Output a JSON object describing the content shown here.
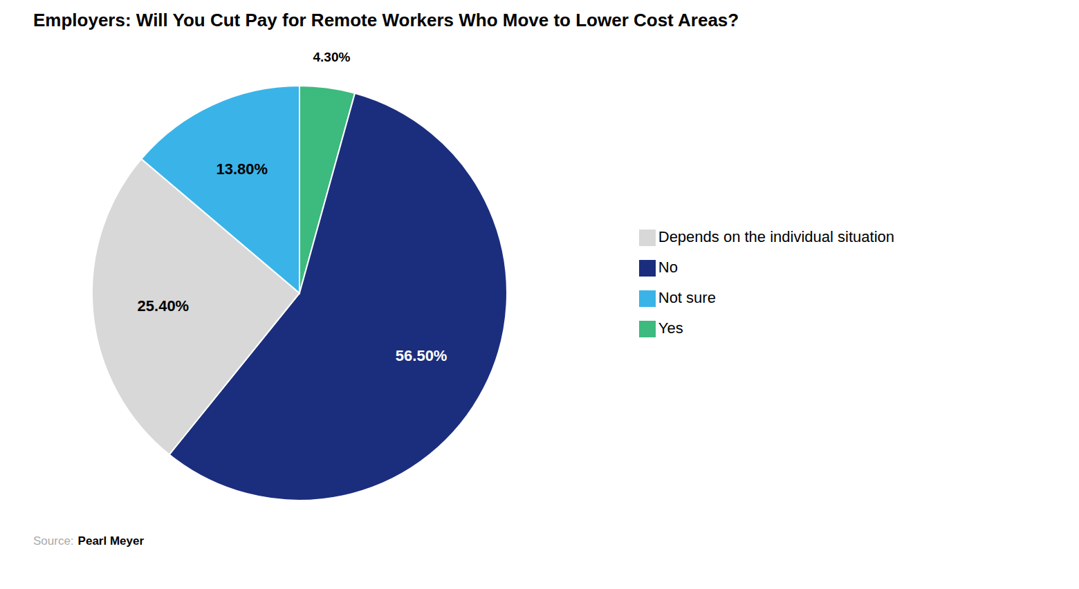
{
  "chart_data": {
    "type": "pie",
    "title": "Employers: Will You Cut Pay for Remote Workers Who Move to Lower Cost Areas?",
    "categories": [
      "Yes",
      "No",
      "Depends on the individual situation",
      "Not sure"
    ],
    "values": [
      4.3,
      56.5,
      25.4,
      13.8
    ],
    "value_labels": [
      "4.30%",
      "56.50%",
      "25.40%",
      "13.80%"
    ],
    "colors": [
      "#3dba7e",
      "#1b2e7e",
      "#d8d8d8",
      "#3ab4e8"
    ],
    "data_labels": true,
    "legend": "right",
    "annotations": [
      "Source:",
      "Pearl Meyer"
    ]
  }
}
